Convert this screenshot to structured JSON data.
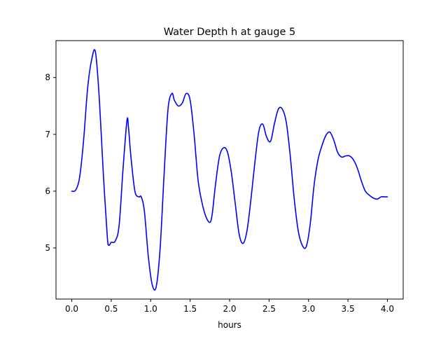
{
  "chart_data": {
    "type": "line",
    "title": "Water Depth h at gauge 5",
    "xlabel": "hours",
    "ylabel": "",
    "xlim": [
      -0.2,
      4.2
    ],
    "ylim": [
      4.1,
      8.65
    ],
    "x_ticks": [
      0.0,
      0.5,
      1.0,
      1.5,
      2.0,
      2.5,
      3.0,
      3.5,
      4.0
    ],
    "x_tick_labels": [
      "0.0",
      "0.5",
      "1.0",
      "1.5",
      "2.0",
      "2.5",
      "3.0",
      "3.5",
      "4.0"
    ],
    "y_ticks": [
      5,
      6,
      7,
      8
    ],
    "y_tick_labels": [
      "5",
      "6",
      "7",
      "8"
    ],
    "grid": false,
    "legend": "none",
    "series": [
      {
        "color": "#0000ff",
        "x": [
          0.0,
          0.05,
          0.1,
          0.15,
          0.2,
          0.25,
          0.3,
          0.35,
          0.4,
          0.45,
          0.47,
          0.5,
          0.55,
          0.6,
          0.65,
          0.7,
          0.72,
          0.75,
          0.8,
          0.85,
          0.88,
          0.92,
          0.97,
          1.02,
          1.07,
          1.12,
          1.17,
          1.22,
          1.27,
          1.3,
          1.35,
          1.4,
          1.45,
          1.5,
          1.55,
          1.6,
          1.65,
          1.7,
          1.75,
          1.78,
          1.82,
          1.87,
          1.92,
          1.97,
          2.02,
          2.07,
          2.12,
          2.17,
          2.22,
          2.27,
          2.32,
          2.37,
          2.42,
          2.47,
          2.52,
          2.57,
          2.62,
          2.67,
          2.72,
          2.77,
          2.82,
          2.87,
          2.92,
          2.97,
          3.02,
          3.07,
          3.12,
          3.17,
          3.22,
          3.27,
          3.32,
          3.37,
          3.42,
          3.47,
          3.52,
          3.57,
          3.62,
          3.67,
          3.72,
          3.77,
          3.82,
          3.87,
          3.92,
          3.97,
          4.0
        ],
        "y": [
          6.0,
          6.02,
          6.25,
          6.9,
          7.8,
          8.3,
          8.45,
          7.6,
          6.3,
          5.2,
          5.05,
          5.1,
          5.12,
          5.4,
          6.4,
          7.25,
          7.1,
          6.6,
          6.0,
          5.9,
          5.9,
          5.65,
          4.85,
          4.35,
          4.32,
          5.0,
          6.3,
          7.45,
          7.72,
          7.6,
          7.5,
          7.55,
          7.72,
          7.6,
          7.0,
          6.2,
          5.8,
          5.55,
          5.45,
          5.6,
          6.1,
          6.6,
          6.76,
          6.7,
          6.35,
          5.8,
          5.25,
          5.08,
          5.3,
          5.85,
          6.5,
          7.05,
          7.18,
          6.95,
          6.88,
          7.2,
          7.45,
          7.44,
          7.2,
          6.6,
          5.85,
          5.3,
          5.05,
          5.02,
          5.4,
          6.1,
          6.55,
          6.8,
          6.98,
          7.04,
          6.9,
          6.68,
          6.6,
          6.62,
          6.62,
          6.55,
          6.4,
          6.18,
          6.0,
          5.93,
          5.88,
          5.86,
          5.9,
          5.9,
          5.9
        ]
      }
    ]
  }
}
